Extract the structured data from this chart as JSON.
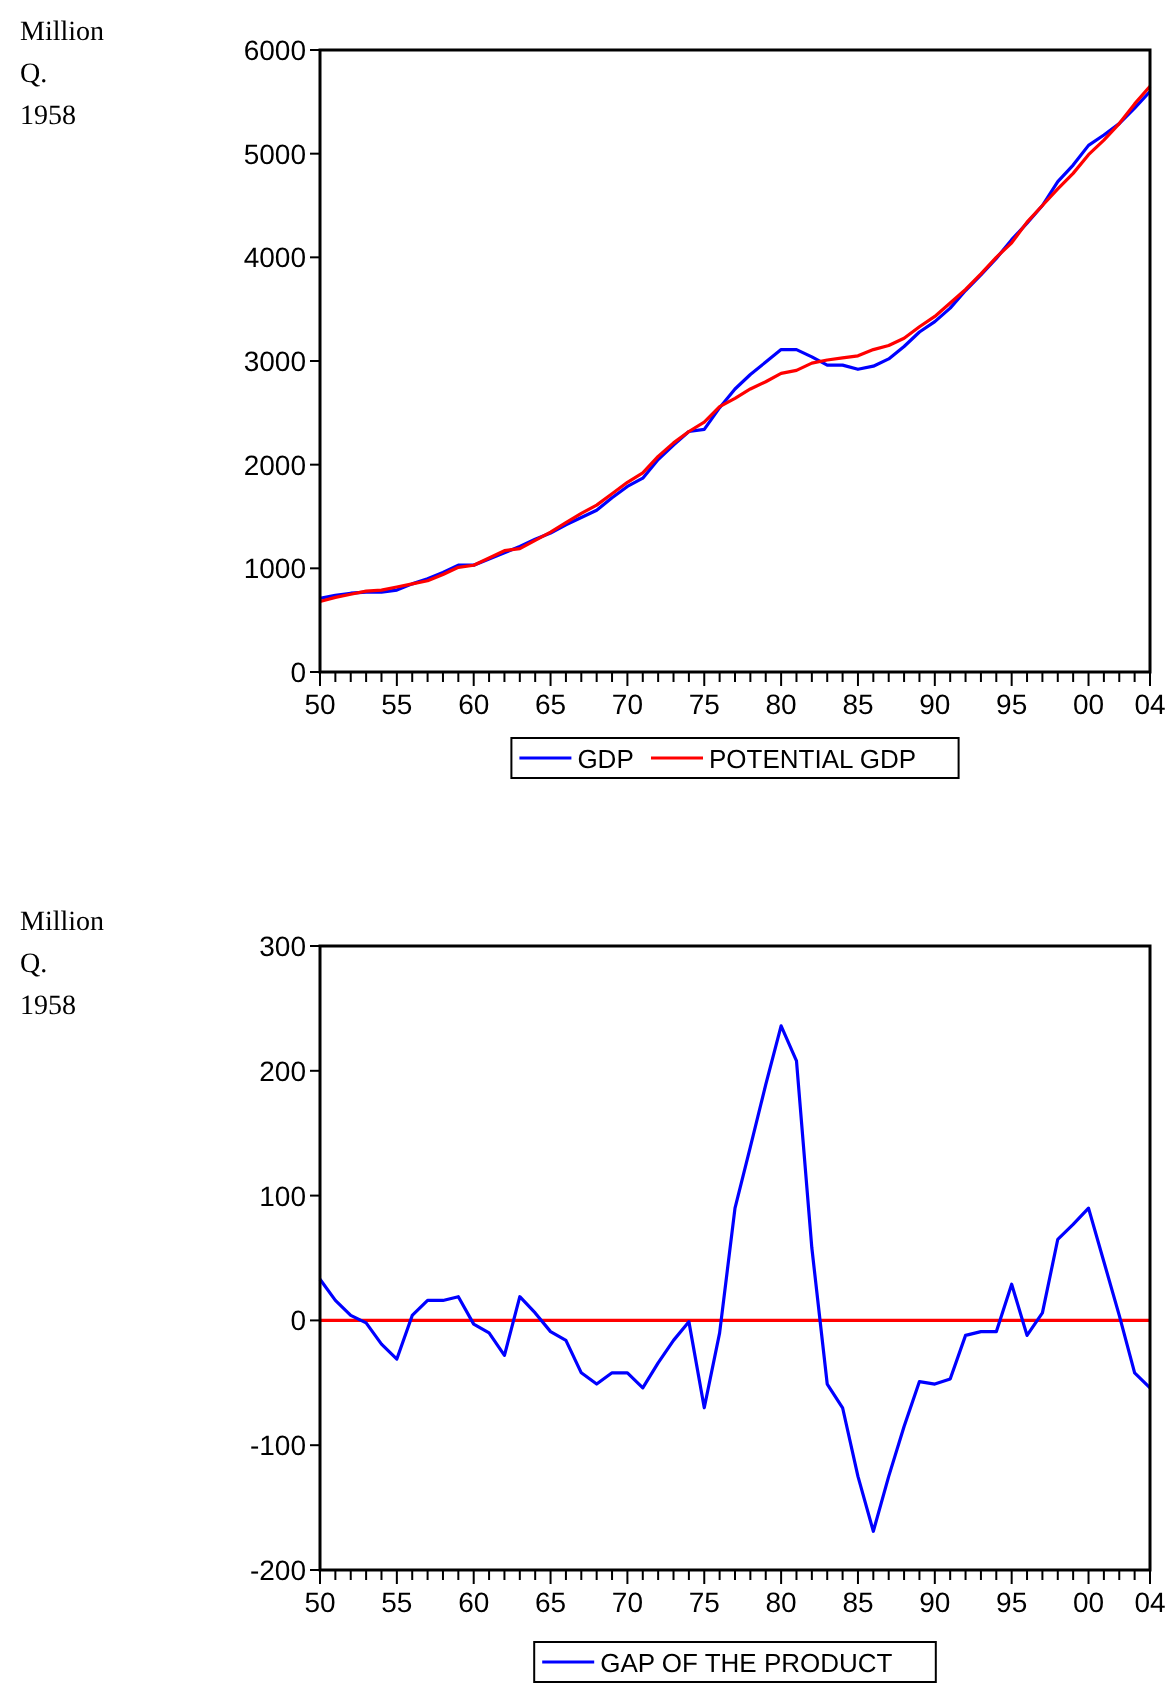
{
  "chart_data": [
    {
      "type": "line",
      "ylabel": "Million\nQ.\n1958",
      "x": [
        1950,
        1951,
        1952,
        1953,
        1954,
        1955,
        1956,
        1957,
        1958,
        1959,
        1960,
        1961,
        1962,
        1963,
        1964,
        1965,
        1966,
        1967,
        1968,
        1969,
        1970,
        1971,
        1972,
        1973,
        1974,
        1975,
        1976,
        1977,
        1978,
        1979,
        1980,
        1981,
        1982,
        1983,
        1984,
        1985,
        1986,
        1987,
        1988,
        1989,
        1990,
        1991,
        1992,
        1993,
        1994,
        1995,
        1996,
        1997,
        1998,
        1999,
        2000,
        2001,
        2002,
        2003,
        2004
      ],
      "series": [
        {
          "name": "GDP",
          "color": "#0000ff",
          "values": [
            710,
            740,
            760,
            770,
            770,
            790,
            850,
            900,
            960,
            1030,
            1030,
            1090,
            1150,
            1210,
            1280,
            1340,
            1420,
            1490,
            1560,
            1680,
            1790,
            1870,
            2050,
            2190,
            2320,
            2340,
            2550,
            2730,
            2870,
            2990,
            3110,
            3110,
            3040,
            2960,
            2960,
            2920,
            2950,
            3020,
            3140,
            3280,
            3380,
            3510,
            3680,
            3830,
            3990,
            4170,
            4330,
            4500,
            4730,
            4890,
            5080,
            5180,
            5290,
            5440,
            5600
          ]
        },
        {
          "name": "POTENTIAL GDP",
          "color": "#ff0000",
          "values": [
            680,
            720,
            750,
            780,
            790,
            820,
            850,
            880,
            940,
            1010,
            1030,
            1100,
            1170,
            1190,
            1270,
            1350,
            1440,
            1530,
            1610,
            1720,
            1830,
            1920,
            2080,
            2210,
            2320,
            2410,
            2560,
            2640,
            2730,
            2800,
            2880,
            2910,
            2980,
            3010,
            3030,
            3050,
            3110,
            3150,
            3220,
            3330,
            3430,
            3560,
            3690,
            3840,
            4000,
            4140,
            4340,
            4500,
            4660,
            4810,
            4990,
            5130,
            5290,
            5480,
            5650
          ]
        }
      ],
      "xlim": [
        1950,
        2004
      ],
      "xticks": [
        {
          "value": 1950,
          "label": "50"
        },
        {
          "value": 1951,
          "label": null
        },
        {
          "value": 1952,
          "label": null
        },
        {
          "value": 1953,
          "label": null
        },
        {
          "value": 1954,
          "label": null
        },
        {
          "value": 1955,
          "label": "55"
        },
        {
          "value": 1956,
          "label": null
        },
        {
          "value": 1957,
          "label": null
        },
        {
          "value": 1958,
          "label": null
        },
        {
          "value": 1959,
          "label": null
        },
        {
          "value": 1960,
          "label": "60"
        },
        {
          "value": 1961,
          "label": null
        },
        {
          "value": 1962,
          "label": null
        },
        {
          "value": 1963,
          "label": null
        },
        {
          "value": 1964,
          "label": null
        },
        {
          "value": 1965,
          "label": "65"
        },
        {
          "value": 1966,
          "label": null
        },
        {
          "value": 1967,
          "label": null
        },
        {
          "value": 1968,
          "label": null
        },
        {
          "value": 1969,
          "label": null
        },
        {
          "value": 1970,
          "label": "70"
        },
        {
          "value": 1971,
          "label": null
        },
        {
          "value": 1972,
          "label": null
        },
        {
          "value": 1973,
          "label": null
        },
        {
          "value": 1974,
          "label": null
        },
        {
          "value": 1975,
          "label": "75"
        },
        {
          "value": 1976,
          "label": null
        },
        {
          "value": 1977,
          "label": null
        },
        {
          "value": 1978,
          "label": null
        },
        {
          "value": 1979,
          "label": null
        },
        {
          "value": 1980,
          "label": "80"
        },
        {
          "value": 1981,
          "label": null
        },
        {
          "value": 1982,
          "label": null
        },
        {
          "value": 1983,
          "label": null
        },
        {
          "value": 1984,
          "label": null
        },
        {
          "value": 1985,
          "label": "85"
        },
        {
          "value": 1986,
          "label": null
        },
        {
          "value": 1987,
          "label": null
        },
        {
          "value": 1988,
          "label": null
        },
        {
          "value": 1989,
          "label": null
        },
        {
          "value": 1990,
          "label": "90"
        },
        {
          "value": 1991,
          "label": null
        },
        {
          "value": 1992,
          "label": null
        },
        {
          "value": 1993,
          "label": null
        },
        {
          "value": 1994,
          "label": null
        },
        {
          "value": 1995,
          "label": "95"
        },
        {
          "value": 1996,
          "label": null
        },
        {
          "value": 1997,
          "label": null
        },
        {
          "value": 1998,
          "label": null
        },
        {
          "value": 1999,
          "label": null
        },
        {
          "value": 2000,
          "label": "00"
        },
        {
          "value": 2001,
          "label": null
        },
        {
          "value": 2002,
          "label": null
        },
        {
          "value": 2003,
          "label": null
        },
        {
          "value": 2004,
          "label": "04"
        }
      ],
      "ylim": [
        0,
        6000
      ],
      "yticks": [
        0,
        1000,
        2000,
        3000,
        4000,
        5000,
        6000
      ],
      "legend": "bottom",
      "grid": false
    },
    {
      "type": "line",
      "ylabel": "Million\nQ.\n1958",
      "x": [
        1950,
        1951,
        1952,
        1953,
        1954,
        1955,
        1956,
        1957,
        1958,
        1959,
        1960,
        1961,
        1962,
        1963,
        1964,
        1965,
        1966,
        1967,
        1968,
        1969,
        1970,
        1971,
        1972,
        1973,
        1974,
        1975,
        1976,
        1977,
        1978,
        1979,
        1980,
        1981,
        1982,
        1983,
        1984,
        1985,
        1986,
        1987,
        1988,
        1989,
        1990,
        1991,
        1992,
        1993,
        1994,
        1995,
        1996,
        1997,
        1998,
        1999,
        2000,
        2001,
        2002,
        2003,
        2004
      ],
      "series": [
        {
          "name": "GAP OF THE PRODUCT",
          "color": "#0000ff",
          "values": [
            33,
            16,
            4,
            -2,
            -19,
            -31,
            4,
            16,
            16,
            19,
            -3,
            -10,
            -28,
            19,
            6,
            -9,
            -16,
            -42,
            -51,
            -42,
            -42,
            -54,
            -34,
            -16,
            -1,
            -70,
            -10,
            90,
            139,
            189,
            236,
            208,
            58,
            -51,
            -70,
            -125,
            -169,
            -125,
            -85,
            -49,
            -51,
            -47,
            -12,
            -9,
            -9,
            29,
            -12,
            6,
            65,
            77,
            90,
            47,
            4,
            -42,
            -54
          ]
        }
      ],
      "ref_lines": [
        {
          "axis": "y",
          "value": 0,
          "color": "#ff0000"
        }
      ],
      "xlim": [
        1950,
        2004
      ],
      "xticks": [
        {
          "value": 1950,
          "label": "50"
        },
        {
          "value": 1951,
          "label": null
        },
        {
          "value": 1952,
          "label": null
        },
        {
          "value": 1953,
          "label": null
        },
        {
          "value": 1954,
          "label": null
        },
        {
          "value": 1955,
          "label": "55"
        },
        {
          "value": 1956,
          "label": null
        },
        {
          "value": 1957,
          "label": null
        },
        {
          "value": 1958,
          "label": null
        },
        {
          "value": 1959,
          "label": null
        },
        {
          "value": 1960,
          "label": "60"
        },
        {
          "value": 1961,
          "label": null
        },
        {
          "value": 1962,
          "label": null
        },
        {
          "value": 1963,
          "label": null
        },
        {
          "value": 1964,
          "label": null
        },
        {
          "value": 1965,
          "label": "65"
        },
        {
          "value": 1966,
          "label": null
        },
        {
          "value": 1967,
          "label": null
        },
        {
          "value": 1968,
          "label": null
        },
        {
          "value": 1969,
          "label": null
        },
        {
          "value": 1970,
          "label": "70"
        },
        {
          "value": 1971,
          "label": null
        },
        {
          "value": 1972,
          "label": null
        },
        {
          "value": 1973,
          "label": null
        },
        {
          "value": 1974,
          "label": null
        },
        {
          "value": 1975,
          "label": "75"
        },
        {
          "value": 1976,
          "label": null
        },
        {
          "value": 1977,
          "label": null
        },
        {
          "value": 1978,
          "label": null
        },
        {
          "value": 1979,
          "label": null
        },
        {
          "value": 1980,
          "label": "80"
        },
        {
          "value": 1981,
          "label": null
        },
        {
          "value": 1982,
          "label": null
        },
        {
          "value": 1983,
          "label": null
        },
        {
          "value": 1984,
          "label": null
        },
        {
          "value": 1985,
          "label": "85"
        },
        {
          "value": 1986,
          "label": null
        },
        {
          "value": 1987,
          "label": null
        },
        {
          "value": 1988,
          "label": null
        },
        {
          "value": 1989,
          "label": null
        },
        {
          "value": 1990,
          "label": "90"
        },
        {
          "value": 1991,
          "label": null
        },
        {
          "value": 1992,
          "label": null
        },
        {
          "value": 1993,
          "label": null
        },
        {
          "value": 1994,
          "label": null
        },
        {
          "value": 1995,
          "label": "95"
        },
        {
          "value": 1996,
          "label": null
        },
        {
          "value": 1997,
          "label": null
        },
        {
          "value": 1998,
          "label": null
        },
        {
          "value": 1999,
          "label": null
        },
        {
          "value": 2000,
          "label": "00"
        },
        {
          "value": 2001,
          "label": null
        },
        {
          "value": 2002,
          "label": null
        },
        {
          "value": 2003,
          "label": null
        },
        {
          "value": 2004,
          "label": "04"
        }
      ],
      "ylim": [
        -200,
        300
      ],
      "yticks": [
        -200,
        -100,
        0,
        100,
        200,
        300
      ],
      "legend": "bottom",
      "grid": false
    }
  ]
}
